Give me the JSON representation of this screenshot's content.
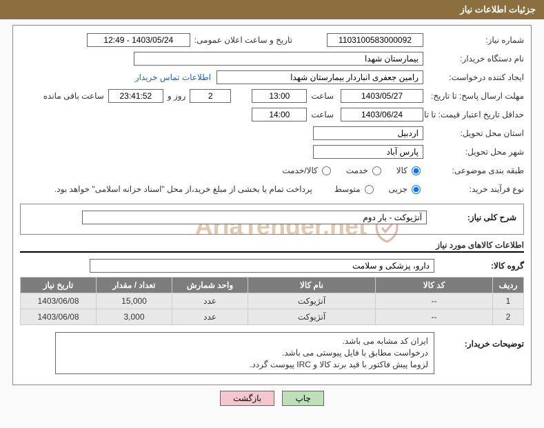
{
  "title_bar": "جزئیات اطلاعات نیاز",
  "fields": {
    "need_number_label": "شماره نیاز:",
    "need_number": "1103100583000092",
    "announce_date_label": "تاریخ و ساعت اعلان عمومی:",
    "announce_date": "1403/05/24 - 12:49",
    "buyer_org_label": "نام دستگاه خریدار:",
    "buyer_org": "بیمارستان شهدا",
    "requester_label": "ایجاد کننده درخواست:",
    "requester": "رامین جعفری انباردار بیمارستان شهدا",
    "contact_link": "اطلاعات تماس خریدار",
    "deadline_label": "مهلت ارسال پاسخ: تا تاریخ:",
    "deadline_date": "1403/05/27",
    "time_label": "ساعت",
    "deadline_time": "13:00",
    "days_remaining": "2",
    "days_label": "روز و",
    "time_remaining": "23:41:52",
    "remaining_label": "ساعت باقی مانده",
    "min_validity_label": "حداقل تاریخ اعتبار قیمت: تا تاریخ:",
    "min_validity_date": "1403/06/24",
    "min_validity_time": "14:00",
    "province_label": "استان محل تحویل:",
    "province": "اردبیل",
    "city_label": "شهر محل تحویل:",
    "city": "پارس آباد",
    "category_label": "طبقه بندی موضوعی:",
    "cat_opts": {
      "goods": "کالا",
      "service": "خدمت",
      "both": "کالا/خدمت"
    },
    "process_label": "نوع فرآیند خرید:",
    "proc_opts": {
      "small": "جزیی",
      "medium": "متوسط"
    },
    "payment_note": "پرداخت تمام یا بخشی از مبلغ خرید،از محل \"اسناد خزانه اسلامی\" خواهد بود."
  },
  "need_summary": {
    "label": "شرح کلی نیاز:",
    "value": "آنژیوکت - بار دوم"
  },
  "goods_section": {
    "header": "اطلاعات کالاهای مورد نیاز",
    "group_label": "گروه کالا:",
    "group_value": "دارو، پزشکی و سلامت"
  },
  "table": {
    "columns": [
      "ردیف",
      "کد کالا",
      "نام کالا",
      "واحد شمارش",
      "تعداد / مقدار",
      "تاریخ نیاز"
    ],
    "rows": [
      [
        "1",
        "--",
        "آنژیوکت",
        "عدد",
        "15,000",
        "1403/06/08"
      ],
      [
        "2",
        "--",
        "آنژیوکت",
        "عدد",
        "3,000",
        "1403/06/08"
      ]
    ],
    "col_widths": [
      "45px",
      "170px",
      "auto",
      "110px",
      "110px",
      "110px"
    ]
  },
  "buyer_notes": {
    "label": "توضیحات خریدار:",
    "lines": [
      "ایران کد مشابه می باشد.",
      "درخواست مطابق با فایل پیوستی می باشد.",
      "لزوما پیش فاکتور با قید برند کالا و IRC پیوست گردد."
    ]
  },
  "buttons": {
    "print": "چاپ",
    "back": "بازگشت"
  },
  "watermark": {
    "text": "AriaTender.net",
    "shield_color": "#d9856a"
  },
  "colors": {
    "title_bg": "#8b6f3f",
    "th_bg": "#7d7d7d",
    "row_bg": "#e8e8e8",
    "link": "#1a5fc7",
    "btn_print_bg": "#bde0b8",
    "btn_back_bg": "#f3c7cb"
  }
}
